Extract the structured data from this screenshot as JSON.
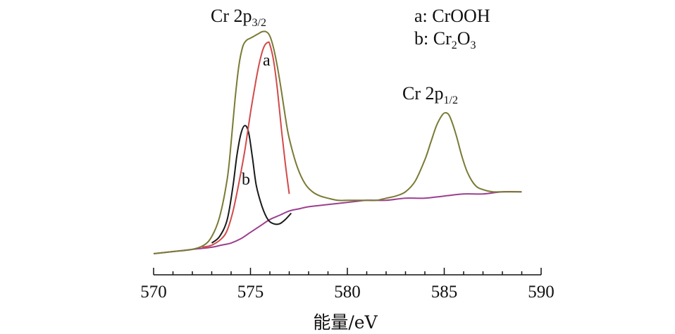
{
  "chart_data": {
    "type": "line",
    "xlabel": "能量/eV",
    "ylabel": "",
    "xlim": [
      570,
      590
    ],
    "xticks": [
      "570",
      "575",
      "580",
      "585",
      "590"
    ],
    "annotations": {
      "peak_3_2": {
        "main": "Cr 2p",
        "sub": "3/2"
      },
      "peak_1_2": {
        "main": "Cr 2p",
        "sub": "1/2"
      },
      "legend_a": {
        "text": "a: CrOOH"
      },
      "legend_b": {
        "prefix": "b: Cr",
        "sub1": "2",
        "mid": "O",
        "sub2": "3"
      },
      "curve_a_label": "a",
      "curve_b_label": "b"
    },
    "series": [
      {
        "key": "envelope",
        "color": "#7a7a36",
        "x": [
          570,
          571,
          572,
          572.6,
          573.0,
          573.4,
          573.8,
          574.0,
          574.2,
          574.4,
          574.6,
          574.8,
          575.0,
          575.2,
          575.4,
          575.6,
          575.8,
          576.0,
          576.2,
          576.4,
          576.6,
          576.8,
          577.0,
          577.4,
          577.8,
          578.2,
          578.6,
          579.0,
          579.5,
          580.0,
          580.5,
          581.0,
          581.5,
          582.0,
          582.5,
          583.0,
          583.5,
          584.0,
          584.3,
          584.6,
          584.9,
          585.1,
          585.3,
          585.6,
          585.9,
          586.2,
          586.6,
          587.0,
          587.5,
          588.0,
          588.5,
          589.0
        ],
        "y": [
          0.0,
          0.01,
          0.02,
          0.04,
          0.08,
          0.17,
          0.35,
          0.52,
          0.72,
          0.88,
          0.97,
          1.0,
          1.01,
          1.02,
          1.03,
          1.04,
          1.04,
          1.02,
          0.96,
          0.87,
          0.76,
          0.64,
          0.54,
          0.41,
          0.33,
          0.29,
          0.27,
          0.26,
          0.25,
          0.25,
          0.25,
          0.25,
          0.25,
          0.26,
          0.27,
          0.29,
          0.34,
          0.44,
          0.52,
          0.6,
          0.65,
          0.66,
          0.64,
          0.56,
          0.46,
          0.38,
          0.32,
          0.3,
          0.29,
          0.29,
          0.29,
          0.29
        ]
      },
      {
        "key": "a",
        "color": "#d24a4a",
        "x": [
          572.5,
          573.0,
          573.5,
          573.8,
          574.1,
          574.4,
          574.7,
          575.0,
          575.3,
          575.5,
          575.7,
          575.9,
          576.0,
          576.2,
          576.4,
          576.6,
          576.8,
          577.0
        ],
        "y": [
          0.03,
          0.04,
          0.07,
          0.11,
          0.2,
          0.33,
          0.48,
          0.66,
          0.82,
          0.91,
          0.97,
          0.99,
          0.98,
          0.9,
          0.76,
          0.58,
          0.42,
          0.28
        ]
      },
      {
        "key": "b",
        "color": "#1a1a1a",
        "x": [
          573.0,
          573.4,
          573.8,
          574.1,
          574.3,
          574.5,
          574.7,
          574.9,
          575.1,
          575.3,
          575.6,
          575.9,
          576.2,
          576.5,
          576.8,
          577.1
        ],
        "y": [
          0.05,
          0.08,
          0.16,
          0.32,
          0.46,
          0.56,
          0.6,
          0.57,
          0.45,
          0.32,
          0.22,
          0.16,
          0.14,
          0.14,
          0.16,
          0.19
        ]
      },
      {
        "key": "background",
        "color": "#9c3f8f",
        "x": [
          570,
          571,
          572,
          573,
          573.5,
          574,
          574.5,
          575,
          575.5,
          576,
          576.5,
          577,
          577.5,
          578,
          579,
          580,
          581,
          582,
          583,
          584,
          585,
          586,
          587,
          588,
          589
        ],
        "y": [
          0.0,
          0.01,
          0.02,
          0.03,
          0.04,
          0.05,
          0.07,
          0.1,
          0.13,
          0.16,
          0.18,
          0.2,
          0.21,
          0.22,
          0.23,
          0.24,
          0.25,
          0.25,
          0.26,
          0.26,
          0.27,
          0.28,
          0.28,
          0.29,
          0.29
        ]
      }
    ]
  }
}
